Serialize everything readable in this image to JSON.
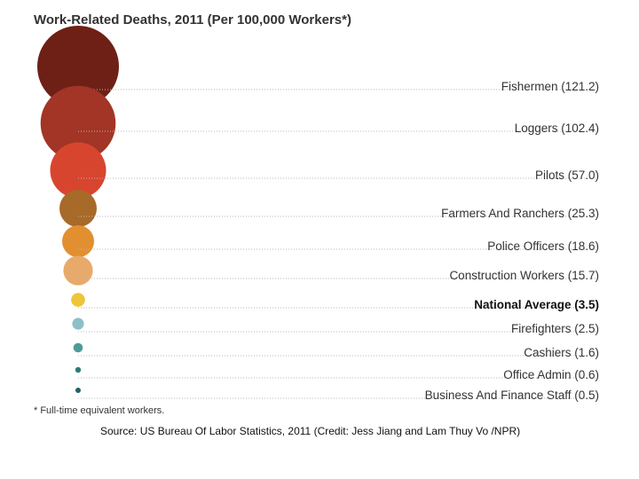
{
  "chart_data": {
    "type": "bubble",
    "title": "Work-Related Deaths, 2011 (Per 100,000 Workers*)",
    "categories": [
      "Fishermen (121.2)",
      "Loggers (102.4)",
      "Pilots (57.0)",
      "Farmers And Ranchers (25.3)",
      "Police Officers (18.6)",
      "Construction Workers (15.7)",
      "National Average (3.5)",
      "Firefighters (2.5)",
      "Cashiers (1.6)",
      "Office Admin (0.6)",
      "Business And Finance Staff (0.5)"
    ],
    "values": [
      121.2,
      102.4,
      57.0,
      25.3,
      18.6,
      15.7,
      3.5,
      2.5,
      1.6,
      0.6,
      0.5
    ],
    "colors": [
      "#6e2016",
      "#a23525",
      "#d8452f",
      "#a86a28",
      "#e28f30",
      "#e8aa6a",
      "#ecc53a",
      "#8ebfc8",
      "#4f9b96",
      "#2d7b7a",
      "#245f6a"
    ],
    "highlight_index": 6,
    "footnote": "* Full-time equivalent workers.",
    "source": "Source: US Bureau Of Labor Statistics, 2011 (Credit: Jess Jiang and Lam Thuy Vo /NPR)"
  }
}
